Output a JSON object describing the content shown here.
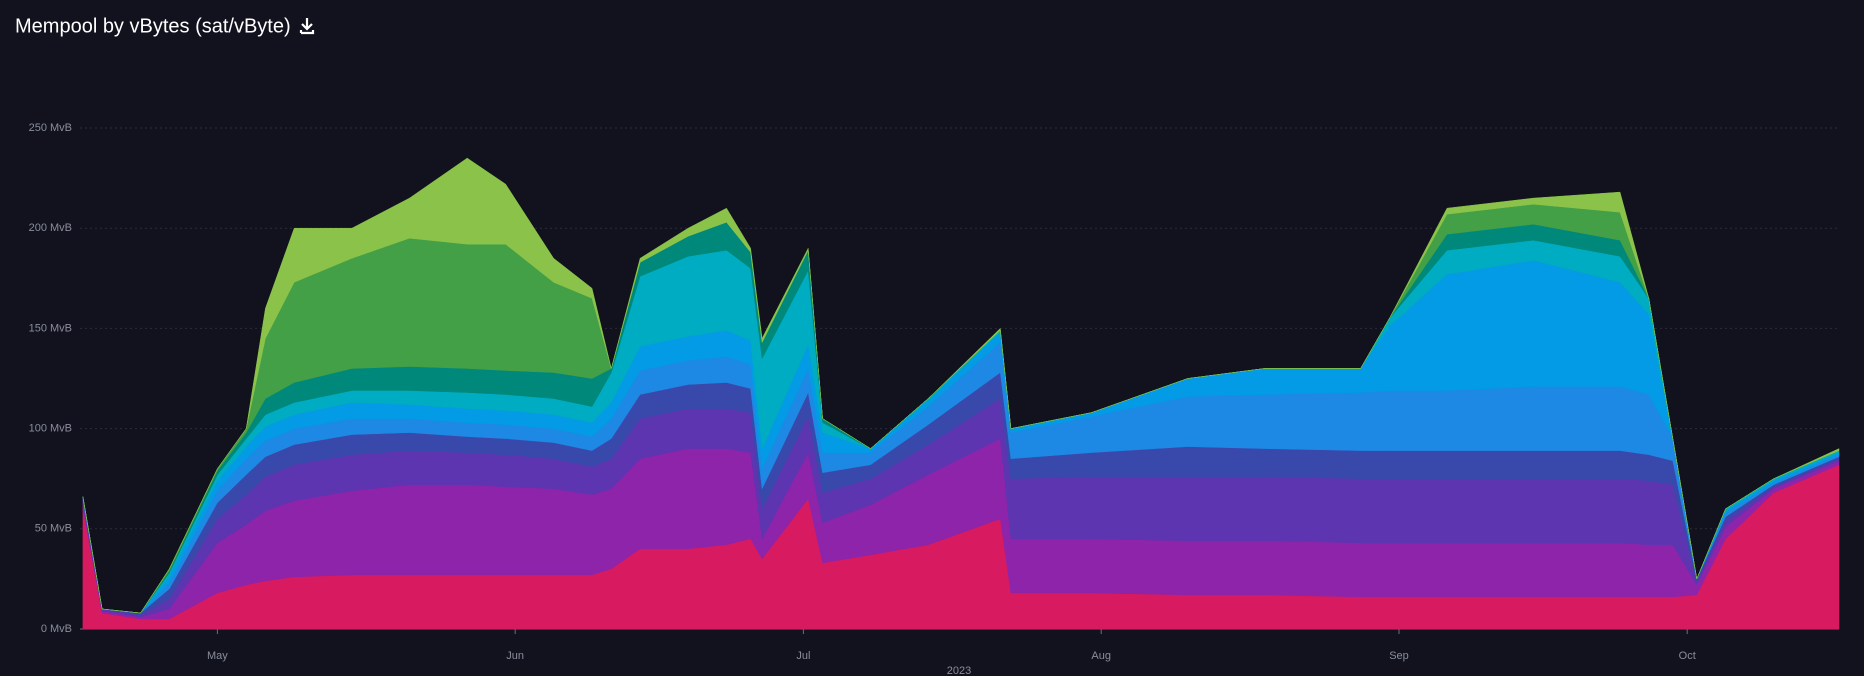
{
  "chart_data": {
    "type": "stacked-area",
    "title": "Mempool by vBytes (sat/vByte)",
    "xlabel": "2023",
    "x": [
      107,
      109,
      113,
      116,
      121,
      124,
      126,
      129,
      135,
      141,
      147,
      151,
      156,
      160,
      162,
      165,
      170,
      174,
      176.5,
      177.7,
      182.5,
      184,
      189,
      195,
      202.5,
      203.6,
      212,
      222,
      230,
      240,
      243,
      249,
      258,
      267,
      270,
      272.5,
      275,
      278,
      283,
      289.8
    ],
    "xlim": [
      106.7,
      289.8
    ],
    "xticks": [
      {
        "value": 121,
        "label": "May"
      },
      {
        "value": 152,
        "label": "Jun"
      },
      {
        "value": 182,
        "label": "Jul"
      },
      {
        "value": 213,
        "label": "Aug"
      },
      {
        "value": 244,
        "label": "Sep"
      },
      {
        "value": 274,
        "label": "Oct"
      }
    ],
    "ylim": [
      0,
      250
    ],
    "yticks": [
      {
        "value": 0,
        "label": "0 MvB"
      },
      {
        "value": 50,
        "label": "50 MvB"
      },
      {
        "value": 100,
        "label": "100 MvB"
      },
      {
        "value": 150,
        "label": "150 MvB"
      },
      {
        "value": 200,
        "label": "200 MvB"
      },
      {
        "value": 250,
        "label": "250 MvB"
      }
    ],
    "grid": true,
    "series": [
      {
        "color": "#d81b60",
        "values": [
          60,
          8,
          5,
          5,
          18,
          22,
          24,
          26,
          27,
          27,
          27,
          27,
          27,
          27,
          30,
          40,
          40,
          42,
          45,
          35,
          65,
          33,
          37,
          42,
          55,
          18,
          18,
          17,
          17,
          16,
          16,
          16,
          16,
          16,
          16,
          16,
          17,
          45,
          68,
          82
        ]
      },
      {
        "color": "#8e24aa",
        "values": [
          3,
          1,
          1,
          5,
          25,
          30,
          35,
          38,
          42,
          45,
          45,
          44,
          43,
          40,
          40,
          45,
          50,
          48,
          43,
          10,
          23,
          20,
          25,
          35,
          40,
          27,
          27,
          27,
          27,
          27,
          27,
          27,
          27,
          27,
          26,
          26,
          5,
          6,
          2,
          2
        ]
      },
      {
        "color": "#5e35b1",
        "values": [
          1,
          1,
          1,
          5,
          12,
          15,
          17,
          18,
          18,
          17,
          16,
          16,
          15,
          14,
          15,
          20,
          20,
          20,
          20,
          15,
          18,
          15,
          13,
          15,
          20,
          30,
          31,
          32,
          32,
          32,
          32,
          32,
          32,
          32,
          32,
          30,
          2,
          3,
          1,
          1
        ]
      },
      {
        "color": "#3949ab",
        "values": [
          1,
          0,
          1,
          5,
          8,
          10,
          10,
          10,
          10,
          9,
          8,
          8,
          8,
          8,
          10,
          12,
          12,
          13,
          12,
          10,
          12,
          10,
          7,
          10,
          13,
          10,
          12,
          15,
          14,
          14,
          14,
          14,
          14,
          14,
          13,
          12,
          1,
          2,
          1,
          1
        ]
      },
      {
        "color": "#1e88e5",
        "values": [
          1,
          0,
          0,
          3,
          6,
          8,
          8,
          8,
          8,
          7,
          7,
          7,
          7,
          7,
          10,
          12,
          12,
          13,
          12,
          10,
          12,
          10,
          6,
          9,
          15,
          13,
          18,
          25,
          27,
          29,
          30,
          30,
          32,
          32,
          30,
          11,
          0,
          2,
          1,
          1
        ]
      },
      {
        "color": "#039be5",
        "values": [
          0,
          0,
          0,
          3,
          5,
          6,
          7,
          7,
          8,
          7,
          7,
          7,
          7,
          7,
          8,
          12,
          12,
          13,
          12,
          10,
          12,
          10,
          2,
          3,
          5,
          2,
          2,
          9,
          13,
          12,
          32,
          58,
          63,
          52,
          40,
          0,
          0,
          1,
          1,
          1
        ]
      },
      {
        "color": "#00acc1",
        "values": [
          0,
          0,
          0,
          2,
          3,
          4,
          6,
          6,
          6,
          7,
          8,
          8,
          8,
          8,
          15,
          35,
          40,
          40,
          36,
          45,
          37,
          5,
          0,
          1,
          1,
          0,
          0,
          0,
          0,
          0,
          4,
          12,
          10,
          13,
          8,
          0,
          0,
          1,
          1,
          1
        ]
      },
      {
        "color": "#00897b",
        "values": [
          0,
          0,
          0,
          1,
          2,
          3,
          8,
          10,
          11,
          12,
          12,
          12,
          13,
          14,
          2,
          7,
          10,
          14,
          8,
          8,
          10,
          2,
          0,
          0,
          0,
          0,
          0,
          0,
          0,
          0,
          0,
          8,
          8,
          8,
          0,
          0,
          0,
          0,
          0,
          0
        ]
      },
      {
        "color": "#43a047",
        "values": [
          0,
          0,
          0,
          1,
          1,
          2,
          30,
          50,
          55,
          64,
          62,
          63,
          45,
          40,
          0,
          0,
          0,
          0,
          0,
          0,
          0,
          0,
          0,
          0,
          0,
          0,
          0,
          0,
          0,
          0,
          0,
          10,
          10,
          14,
          0,
          0,
          0,
          0,
          0,
          0
        ]
      },
      {
        "color": "#8bc34a",
        "values": [
          0,
          0,
          0,
          0,
          0,
          0,
          15,
          27,
          15,
          20,
          43,
          30,
          12,
          5,
          0,
          2,
          4,
          7,
          2,
          2,
          1,
          0,
          0,
          0,
          1,
          0,
          0,
          0,
          0,
          0,
          0,
          3,
          3,
          10,
          0,
          0,
          0,
          0,
          0,
          1
        ]
      }
    ]
  }
}
